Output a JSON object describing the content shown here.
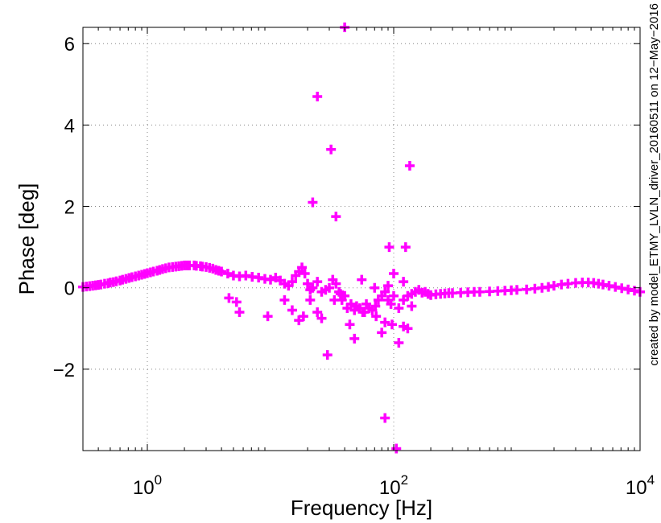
{
  "chart_data": {
    "type": "scatter",
    "xlabel": "Frequency [Hz]",
    "ylabel": "Phase [deg]",
    "x_scale": "log",
    "xlim": [
      0.3,
      10000
    ],
    "ylim": [
      -4,
      6.4
    ],
    "x_ticks": [
      {
        "value": 1,
        "base": "10",
        "exp": "0"
      },
      {
        "value": 100,
        "base": "10",
        "exp": "2"
      },
      {
        "value": 10000,
        "base": "10",
        "exp": "4"
      }
    ],
    "y_ticks": [
      {
        "value": -2,
        "label": "−2"
      },
      {
        "value": 0,
        "label": "0"
      },
      {
        "value": 2,
        "label": "2"
      },
      {
        "value": 4,
        "label": "4"
      },
      {
        "value": 6,
        "label": "6"
      }
    ],
    "grid": true,
    "marker": "plus",
    "color": "#ff00ff",
    "side_note": "created by model_ETMY_LVLN_driver_20160511 on 12−May−2016",
    "series": [
      {
        "points": [
          [
            0.3,
            0.02
          ],
          [
            0.32,
            0.03
          ],
          [
            0.34,
            0.04
          ],
          [
            0.36,
            0.05
          ],
          [
            0.38,
            0.06
          ],
          [
            0.4,
            0.07
          ],
          [
            0.42,
            0.08
          ],
          [
            0.45,
            0.1
          ],
          [
            0.48,
            0.11
          ],
          [
            0.5,
            0.13
          ],
          [
            0.53,
            0.14
          ],
          [
            0.56,
            0.16
          ],
          [
            0.6,
            0.18
          ],
          [
            0.63,
            0.2
          ],
          [
            0.67,
            0.22
          ],
          [
            0.71,
            0.24
          ],
          [
            0.75,
            0.26
          ],
          [
            0.8,
            0.28
          ],
          [
            0.85,
            0.3
          ],
          [
            0.9,
            0.32
          ],
          [
            0.95,
            0.34
          ],
          [
            1.0,
            0.36
          ],
          [
            1.06,
            0.38
          ],
          [
            1.12,
            0.4
          ],
          [
            1.2,
            0.42
          ],
          [
            1.26,
            0.44
          ],
          [
            1.33,
            0.46
          ],
          [
            1.41,
            0.48
          ],
          [
            1.5,
            0.5
          ],
          [
            1.6,
            0.51
          ],
          [
            1.7,
            0.52
          ],
          [
            1.8,
            0.53
          ],
          [
            1.9,
            0.54
          ],
          [
            2.0,
            0.55
          ],
          [
            2.1,
            0.55
          ],
          [
            2.2,
            0.55
          ],
          [
            2.4,
            0.55
          ],
          [
            2.5,
            0.54
          ],
          [
            2.7,
            0.53
          ],
          [
            2.8,
            0.52
          ],
          [
            3.0,
            0.51
          ],
          [
            3.2,
            0.49
          ],
          [
            3.4,
            0.47
          ],
          [
            3.6,
            0.44
          ],
          [
            3.8,
            0.42
          ],
          [
            4.0,
            0.4
          ],
          [
            4.5,
            0.35
          ],
          [
            5.0,
            0.3
          ],
          [
            5.6,
            0.28
          ],
          [
            6.3,
            0.3
          ],
          [
            7.1,
            0.27
          ],
          [
            8.0,
            0.25
          ],
          [
            9.0,
            0.22
          ],
          [
            10.0,
            0.2
          ],
          [
            11.0,
            0.25
          ],
          [
            12.0,
            0.18
          ],
          [
            13.0,
            0.1
          ],
          [
            14.0,
            0.05
          ],
          [
            15.0,
            0.15
          ],
          [
            16.0,
            0.3
          ],
          [
            17.0,
            0.4
          ],
          [
            18.0,
            0.5
          ],
          [
            19.0,
            0.35
          ],
          [
            20.0,
            0.1
          ],
          [
            21.0,
            -0.05
          ],
          [
            22.0,
            0.0
          ],
          [
            24.0,
            0.15
          ],
          [
            26.0,
            -0.1
          ],
          [
            28.0,
            -0.05
          ],
          [
            30.0,
            0.0
          ],
          [
            32.0,
            0.2
          ],
          [
            34.0,
            0.1
          ],
          [
            36.0,
            -0.1
          ],
          [
            38.0,
            -0.3
          ],
          [
            40.0,
            -0.2
          ],
          [
            42.0,
            -0.5
          ],
          [
            45.0,
            -0.4
          ],
          [
            48.0,
            -0.55
          ],
          [
            50.0,
            -0.45
          ],
          [
            53.0,
            -0.5
          ],
          [
            56.0,
            -0.6
          ],
          [
            60.0,
            -0.4
          ],
          [
            63.0,
            -0.5
          ],
          [
            67.0,
            -0.55
          ],
          [
            71.0,
            -0.45
          ],
          [
            75.0,
            -0.3
          ],
          [
            80.0,
            -0.2
          ],
          [
            85.0,
            -0.1
          ],
          [
            90.0,
            -0.3
          ],
          [
            95.0,
            -0.4
          ],
          [
            100.0,
            -0.2
          ],
          [
            110.0,
            -0.5
          ],
          [
            120.0,
            -0.3
          ],
          [
            130.0,
            -0.2
          ],
          [
            140.0,
            -0.15
          ],
          [
            150.0,
            -0.1
          ],
          [
            160.0,
            -0.05
          ],
          [
            170.0,
            -0.12
          ],
          [
            180.0,
            -0.1
          ],
          [
            190.0,
            -0.15
          ],
          [
            200.0,
            -0.18
          ],
          [
            220.0,
            -0.16
          ],
          [
            240.0,
            -0.15
          ],
          [
            260.0,
            -0.14
          ],
          [
            280.0,
            -0.13
          ],
          [
            300.0,
            -0.13
          ],
          [
            350.0,
            -0.12
          ],
          [
            400.0,
            -0.11
          ],
          [
            450.0,
            -0.1
          ],
          [
            500.0,
            -0.1
          ],
          [
            600.0,
            -0.09
          ],
          [
            700.0,
            -0.08
          ],
          [
            800.0,
            -0.07
          ],
          [
            900.0,
            -0.06
          ],
          [
            1000.0,
            -0.05
          ],
          [
            1200.0,
            -0.04
          ],
          [
            1400.0,
            -0.02
          ],
          [
            1600.0,
            0.0
          ],
          [
            1800.0,
            0.02
          ],
          [
            2000.0,
            0.05
          ],
          [
            2300.0,
            0.08
          ],
          [
            2600.0,
            0.1
          ],
          [
            3000.0,
            0.12
          ],
          [
            3400.0,
            0.13
          ],
          [
            3800.0,
            0.13
          ],
          [
            4200.0,
            0.12
          ],
          [
            4600.0,
            0.1
          ],
          [
            5000.0,
            0.08
          ],
          [
            5600.0,
            0.05
          ],
          [
            6300.0,
            0.02
          ],
          [
            7100.0,
            -0.01
          ],
          [
            8000.0,
            -0.04
          ],
          [
            9000.0,
            -0.07
          ],
          [
            10000.0,
            -0.1
          ],
          [
            4.6,
            -0.25
          ],
          [
            5.3,
            -0.35
          ],
          [
            5.6,
            -0.6
          ],
          [
            9.5,
            -0.7
          ],
          [
            13.0,
            -0.3
          ],
          [
            15.0,
            -0.55
          ],
          [
            17.0,
            -0.8
          ],
          [
            18.5,
            -0.7
          ],
          [
            21.0,
            -0.3
          ],
          [
            24.0,
            -0.6
          ],
          [
            26.0,
            -0.75
          ],
          [
            29.0,
            -1.65
          ],
          [
            33.0,
            -0.3
          ],
          [
            37.0,
            -0.15
          ],
          [
            44.0,
            -0.9
          ],
          [
            48.0,
            -1.25
          ],
          [
            58.0,
            -0.6
          ],
          [
            72.0,
            -0.7
          ],
          [
            80.0,
            -1.1
          ],
          [
            85.0,
            -0.85
          ],
          [
            97.0,
            -0.9
          ],
          [
            110.0,
            -1.35
          ],
          [
            120.0,
            -0.95
          ],
          [
            130.0,
            -1.0
          ],
          [
            140.0,
            -0.45
          ],
          [
            55.0,
            0.2
          ],
          [
            70.0,
            0.0
          ],
          [
            90.0,
            0.05
          ],
          [
            100.0,
            0.35
          ],
          [
            120.0,
            0.15
          ],
          [
            24.0,
            4.7
          ],
          [
            31.0,
            3.4
          ],
          [
            34.0,
            1.75
          ],
          [
            22.0,
            2.1
          ],
          [
            40.0,
            6.4
          ],
          [
            92.0,
            1.0
          ],
          [
            135.0,
            3.0
          ],
          [
            125.0,
            1.0
          ],
          [
            85.0,
            -3.2
          ],
          [
            105.0,
            -3.95
          ]
        ]
      }
    ]
  }
}
